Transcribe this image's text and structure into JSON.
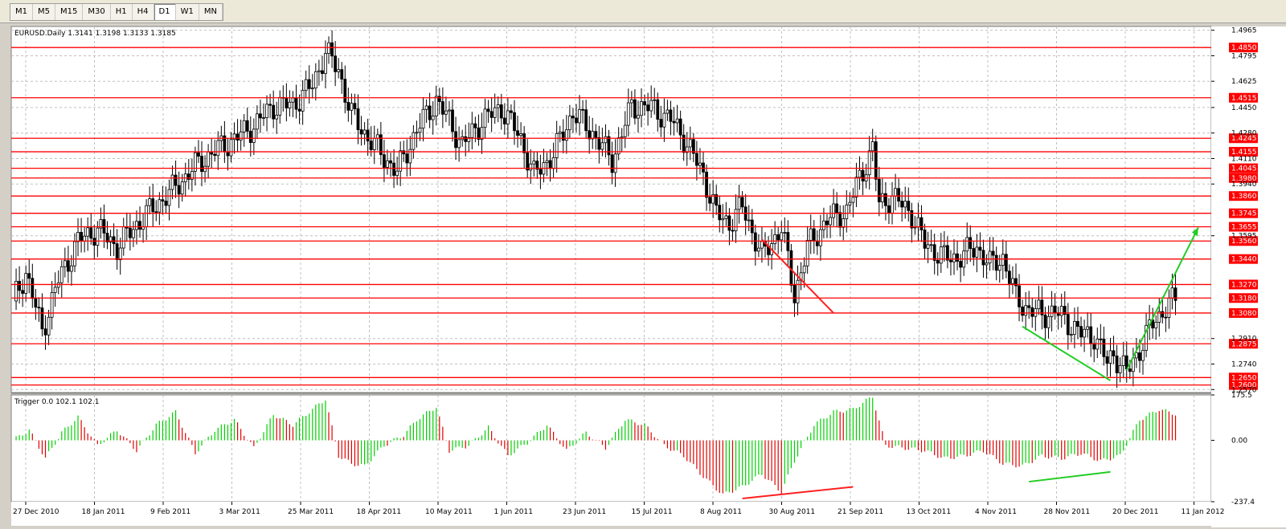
{
  "toolbar": {
    "timeframes": [
      "M1",
      "M5",
      "M15",
      "M30",
      "H1",
      "H4",
      "D1",
      "W1",
      "MN"
    ],
    "active": "D1"
  },
  "main_chart": {
    "symbol_header": "EURUSD.Daily  1.3141 1.3198 1.3133 1.3185",
    "price_axis_labels": [
      "1.4965",
      "1.4795",
      "1.4625",
      "1.4450",
      "1.4280",
      "1.4110",
      "1.3940",
      "1.3595",
      "1.2910",
      "1.2740",
      "1.2570"
    ],
    "levels": [
      "1.4850",
      "1.4515",
      "1.4245",
      "1.4155",
      "1.4045",
      "1.3980",
      "1.3860",
      "1.3745",
      "1.3655",
      "1.3560",
      "1.3440",
      "1.3270",
      "1.3180",
      "1.3080",
      "1.2875",
      "1.2650",
      "1.2600"
    ],
    "level_color": "#ff0000",
    "bull_color": "#000000",
    "background": "#ffffff"
  },
  "indicator": {
    "header": "Trigger 0.0 102.1 102.1",
    "axis_labels": [
      "175.5",
      "0.00",
      "-237.4"
    ],
    "up_color": "#00d000",
    "down_color": "#e00000"
  },
  "time_axis": {
    "labels": [
      "27 Dec 2010",
      "18 Jan 2011",
      "9 Feb 2011",
      "3 Mar 2011",
      "25 Mar 2011",
      "18 Apr 2011",
      "10 May 2011",
      "1 Jun 2011",
      "23 Jun 2011",
      "15 Jul 2011",
      "8 Aug 2011",
      "30 Aug 2011",
      "21 Sep 2011",
      "13 Oct 2011",
      "4 Nov 2011",
      "28 Nov 2011",
      "20 Dec 2011",
      "11 Jan 2012"
    ]
  },
  "chart_data": {
    "type": "candlestick",
    "symbol": "EURUSD.Daily",
    "last_bar": {
      "open": 1.3141,
      "high": 1.3198,
      "low": 1.3133,
      "close": 1.3185
    },
    "price_range": [
      1.255,
      1.499
    ],
    "close_path": [
      [
        0,
        1.316
      ],
      [
        4,
        1.335
      ],
      [
        9,
        1.296
      ],
      [
        14,
        1.33
      ],
      [
        20,
        1.356
      ],
      [
        26,
        1.364
      ],
      [
        32,
        1.352
      ],
      [
        38,
        1.367
      ],
      [
        44,
        1.38
      ],
      [
        50,
        1.392
      ],
      [
        56,
        1.406
      ],
      [
        62,
        1.416
      ],
      [
        68,
        1.424
      ],
      [
        74,
        1.433
      ],
      [
        80,
        1.446
      ],
      [
        86,
        1.447
      ],
      [
        92,
        1.46
      ],
      [
        96,
        1.482
      ],
      [
        100,
        1.47
      ],
      [
        104,
        1.44
      ],
      [
        108,
        1.428
      ],
      [
        114,
        1.412
      ],
      [
        118,
        1.402
      ],
      [
        124,
        1.43
      ],
      [
        130,
        1.45
      ],
      [
        134,
        1.436
      ],
      [
        138,
        1.42
      ],
      [
        144,
        1.436
      ],
      [
        150,
        1.445
      ],
      [
        156,
        1.424
      ],
      [
        160,
        1.4
      ],
      [
        166,
        1.414
      ],
      [
        172,
        1.442
      ],
      [
        178,
        1.428
      ],
      [
        184,
        1.41
      ],
      [
        190,
        1.446
      ],
      [
        196,
        1.445
      ],
      [
        202,
        1.437
      ],
      [
        206,
        1.425
      ],
      [
        212,
        1.4
      ],
      [
        216,
        1.374
      ],
      [
        220,
        1.368
      ],
      [
        224,
        1.379
      ],
      [
        230,
        1.346
      ],
      [
        236,
        1.365
      ],
      [
        240,
        1.32
      ],
      [
        244,
        1.352
      ],
      [
        250,
        1.37
      ],
      [
        256,
        1.376
      ],
      [
        260,
        1.398
      ],
      [
        264,
        1.418
      ],
      [
        266,
        1.38
      ],
      [
        270,
        1.386
      ],
      [
        276,
        1.374
      ],
      [
        280,
        1.354
      ],
      [
        286,
        1.345
      ],
      [
        290,
        1.345
      ],
      [
        296,
        1.352
      ],
      [
        300,
        1.34
      ],
      [
        304,
        1.345
      ],
      [
        308,
        1.318
      ],
      [
        312,
        1.31
      ],
      [
        316,
        1.307
      ],
      [
        320,
        1.309
      ],
      [
        324,
        1.302
      ],
      [
        328,
        1.294
      ],
      [
        332,
        1.293
      ],
      [
        336,
        1.275
      ],
      [
        338,
        1.281
      ],
      [
        342,
        1.268
      ],
      [
        346,
        1.284
      ],
      [
        350,
        1.301
      ],
      [
        354,
        1.312
      ],
      [
        357,
        1.317
      ]
    ],
    "trendlines": [
      {
        "color": "red",
        "from": [
          230,
          1.357
        ],
        "to": [
          252,
          1.308
        ]
      },
      {
        "color": "green",
        "from": [
          310,
          1.299
        ],
        "to": [
          337,
          1.263
        ]
      },
      {
        "color": "green",
        "from": [
          342,
          1.27
        ],
        "to": [
          364,
          1.365
        ]
      }
    ],
    "indicator_values_path": [
      [
        0,
        0
      ],
      [
        5,
        40
      ],
      [
        10,
        -70
      ],
      [
        15,
        30
      ],
      [
        20,
        90
      ],
      [
        26,
        -20
      ],
      [
        32,
        40
      ],
      [
        38,
        -40
      ],
      [
        44,
        60
      ],
      [
        50,
        110
      ],
      [
        56,
        -50
      ],
      [
        62,
        40
      ],
      [
        68,
        80
      ],
      [
        74,
        -30
      ],
      [
        80,
        100
      ],
      [
        86,
        60
      ],
      [
        92,
        120
      ],
      [
        96,
        160
      ],
      [
        100,
        -60
      ],
      [
        104,
        -90
      ],
      [
        108,
        -100
      ],
      [
        114,
        -20
      ],
      [
        120,
        20
      ],
      [
        124,
        80
      ],
      [
        130,
        130
      ],
      [
        134,
        -40
      ],
      [
        140,
        -20
      ],
      [
        146,
        50
      ],
      [
        152,
        -60
      ],
      [
        158,
        -10
      ],
      [
        164,
        60
      ],
      [
        170,
        -40
      ],
      [
        176,
        30
      ],
      [
        182,
        -30
      ],
      [
        188,
        80
      ],
      [
        194,
        60
      ],
      [
        200,
        -20
      ],
      [
        206,
        -60
      ],
      [
        212,
        -140
      ],
      [
        218,
        -210
      ],
      [
        224,
        -180
      ],
      [
        230,
        -130
      ],
      [
        236,
        -200
      ],
      [
        240,
        -80
      ],
      [
        246,
        60
      ],
      [
        252,
        110
      ],
      [
        258,
        120
      ],
      [
        264,
        170
      ],
      [
        268,
        -20
      ],
      [
        274,
        -30
      ],
      [
        280,
        -40
      ],
      [
        286,
        -70
      ],
      [
        292,
        -60
      ],
      [
        298,
        -40
      ],
      [
        304,
        -90
      ],
      [
        310,
        -100
      ],
      [
        316,
        -60
      ],
      [
        322,
        -70
      ],
      [
        328,
        -50
      ],
      [
        334,
        -80
      ],
      [
        340,
        -60
      ],
      [
        346,
        80
      ],
      [
        352,
        120
      ],
      [
        357,
        102
      ]
    ],
    "indicator_range": [
      -237.4,
      175.5
    ]
  }
}
